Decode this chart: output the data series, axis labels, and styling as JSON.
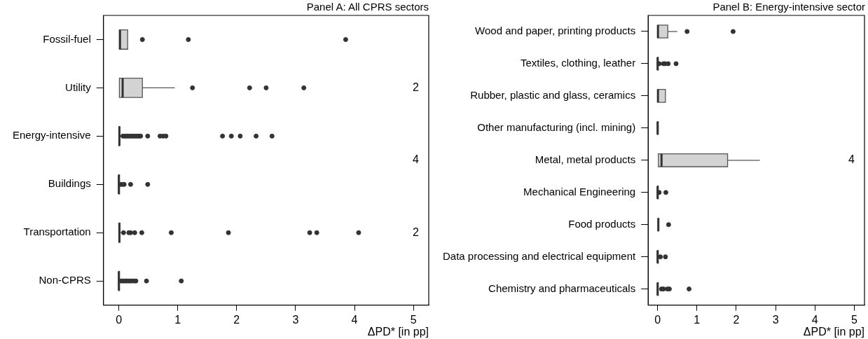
{
  "chart_data": [
    {
      "type": "box",
      "title": "Panel A: All CPRS sectors",
      "xlabel": "ΔPD* [in pp]",
      "orientation": "horizontal",
      "color": "#d3d3d3",
      "categories": [
        "Fossil-fuel",
        "Utility",
        "Energy-intensive",
        "Buildings",
        "Transportation",
        "Non-CPRS"
      ],
      "boxes": [
        {
          "low": 0.01,
          "q1": 0.01,
          "median": 0.02,
          "q3": 0.15,
          "high": 0.15,
          "outliers": [
            0.4,
            1.18,
            3.85
          ]
        },
        {
          "low": 0.01,
          "q1": 0.01,
          "median": 0.065,
          "q3": 0.4,
          "high": 0.95,
          "outliers": [
            1.25,
            2.22,
            2.5,
            3.14
          ]
        },
        {
          "low": 0,
          "q1": 0,
          "median": 0.01,
          "q3": 0.01,
          "high": 0.05,
          "outliers": [
            0.07,
            0.1,
            0.13,
            0.16,
            0.19,
            0.22,
            0.25,
            0.28,
            0.31,
            0.34,
            0.37,
            0.49,
            0.7,
            0.75,
            0.8,
            1.76,
            1.91,
            2.06,
            2.33,
            2.6
          ]
        },
        {
          "low": 0,
          "q1": 0,
          "median": 0,
          "q3": 0,
          "high": 0.01,
          "outliers": [
            0.03,
            0.06,
            0.09,
            0.2,
            0.49
          ]
        },
        {
          "low": 0,
          "q1": 0,
          "median": 0.01,
          "q3": 0.02,
          "high": 0.04,
          "outliers": [
            0.08,
            0.17,
            0.2,
            0.27,
            0.39,
            0.89,
            1.86,
            3.24,
            3.36,
            4.07
          ]
        },
        {
          "low": 0,
          "q1": 0,
          "median": 0,
          "q3": 0.01,
          "high": 0.02,
          "outliers": [
            0.04,
            0.07,
            0.1,
            0.13,
            0.16,
            0.19,
            0.22,
            0.26,
            0.29,
            0.47,
            1.06
          ]
        }
      ],
      "xlim": [
        -0.26,
        5.26
      ],
      "xticks": [
        0,
        1,
        2,
        3,
        4,
        5
      ],
      "annotations": [
        "2",
        "4",
        "2"
      ]
    },
    {
      "type": "box",
      "title": "Panel B: Energy-intensive sector",
      "xlabel": "ΔPD* [in pp]",
      "orientation": "horizontal",
      "color": "#d3d3d3",
      "categories": [
        "Wood and paper, printing products",
        "Textiles, clothing, leather",
        "Rubber, plastic and glass, ceramics",
        "Other manufacturing (incl. mining)",
        "Metal, metal products",
        "Mechanical Engineering",
        "Food products",
        "Data processing and electrical equipment",
        "Chemistry and pharmaceuticals"
      ],
      "boxes": [
        {
          "low": 0,
          "q1": 0,
          "median": 0.01,
          "q3": 0.26,
          "high": 0.5,
          "outliers": [
            0.75,
            1.92
          ]
        },
        {
          "low": 0,
          "q1": 0,
          "median": 0,
          "q3": 0,
          "high": 0.02,
          "outliers": [
            0.04,
            0.15,
            0.19,
            0.27,
            0.47
          ]
        },
        {
          "low": 0,
          "q1": 0,
          "median": 0.01,
          "q3": 0.2,
          "high": 0.2
        },
        {
          "low": 0,
          "q1": 0,
          "median": 0,
          "q3": 0,
          "high": 0.03
        },
        {
          "low": 0.02,
          "q1": 0.02,
          "median": 0.1,
          "q3": 1.78,
          "high": 2.6
        },
        {
          "low": 0,
          "q1": 0,
          "median": 0,
          "q3": 0,
          "high": 0.01,
          "outliers": [
            0.04,
            0.21
          ]
        },
        {
          "low": 0.01,
          "q1": 0.01,
          "median": 0.02,
          "q3": 0.02,
          "high": 0.03,
          "outliers": [
            0.28
          ]
        },
        {
          "low": 0,
          "q1": 0,
          "median": 0,
          "q3": 0.01,
          "high": 0.02,
          "outliers": [
            0.07,
            0.2
          ]
        },
        {
          "low": 0,
          "q1": 0,
          "median": 0,
          "q3": 0.01,
          "high": 0.03,
          "outliers": [
            0.1,
            0.15,
            0.25,
            0.3,
            0.8
          ]
        }
      ],
      "xlim": [
        -0.24,
        5.26
      ],
      "xticks": [
        0,
        1,
        2,
        3,
        4,
        5
      ],
      "annotations": [
        "4"
      ]
    }
  ]
}
